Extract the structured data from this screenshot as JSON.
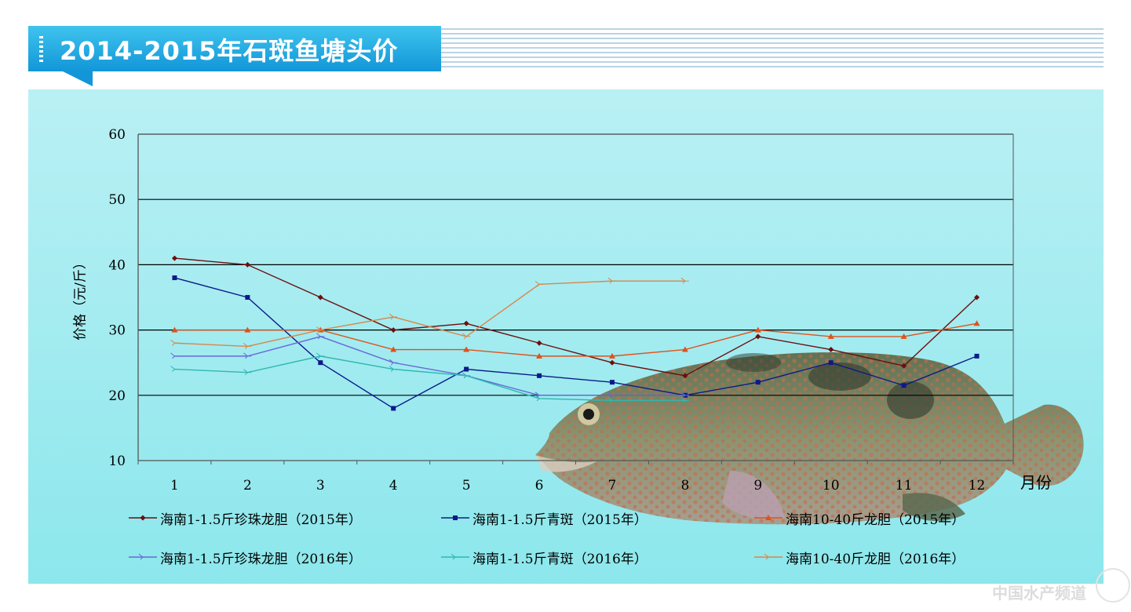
{
  "header": {
    "title": "2014-2015年石斑鱼塘头价"
  },
  "chart_data": {
    "type": "line",
    "title": "2014-2015年石斑鱼塘头价",
    "xlabel": "月份",
    "ylabel": "价格（元/斤）",
    "ylim": [
      10,
      60
    ],
    "yticks": [
      "10",
      "20",
      "30",
      "40",
      "50",
      "60"
    ],
    "categories": [
      "1",
      "2",
      "3",
      "4",
      "5",
      "6",
      "7",
      "8",
      "9",
      "10",
      "11",
      "12"
    ],
    "grid": true,
    "legend_position": "bottom",
    "series": [
      {
        "name": "海南1-1.5斤珍珠龙胆（2015年）",
        "color": "#6b0f0f",
        "marker": "diamond",
        "values": [
          41,
          40,
          35,
          30,
          31,
          28,
          25,
          23,
          29,
          27,
          24.5,
          35
        ]
      },
      {
        "name": "海南1-1.5斤青斑（2015年）",
        "color": "#0d1a8a",
        "marker": "square",
        "values": [
          38,
          35,
          25,
          18,
          24,
          23,
          22,
          20,
          22,
          25,
          21.5,
          26
        ]
      },
      {
        "name": "海南10-40斤龙胆（2015年）",
        "color": "#e0521a",
        "marker": "triangle",
        "values": [
          30,
          30,
          30,
          27,
          27,
          26,
          26,
          27,
          30,
          29,
          29,
          31
        ]
      },
      {
        "name": "海南1-1.5斤珍珠龙胆（2016年）",
        "color": "#6868d8",
        "marker": "tick",
        "values": [
          26,
          26,
          29,
          25,
          23,
          20,
          20,
          20,
          null,
          null,
          null,
          null
        ]
      },
      {
        "name": "海南1-1.5斤青斑（2016年）",
        "color": "#2fb8b0",
        "marker": "tick",
        "values": [
          24,
          23.5,
          26,
          24,
          23,
          19.5,
          19.2,
          19.2,
          null,
          null,
          null,
          null
        ]
      },
      {
        "name": "海南10-40斤龙胆（2016年）",
        "color": "#d9864a",
        "marker": "tick",
        "values": [
          28,
          27.5,
          30,
          32,
          29,
          37,
          37.5,
          37.5,
          null,
          null,
          null,
          null
        ]
      }
    ]
  },
  "watermark": {
    "text": "中国水产频道"
  },
  "colors": {
    "panel": "#a8ecf0",
    "title_bar": "#1a9fdc",
    "fish_body": "#6e7a55",
    "fish_spots": "#c0704a"
  }
}
